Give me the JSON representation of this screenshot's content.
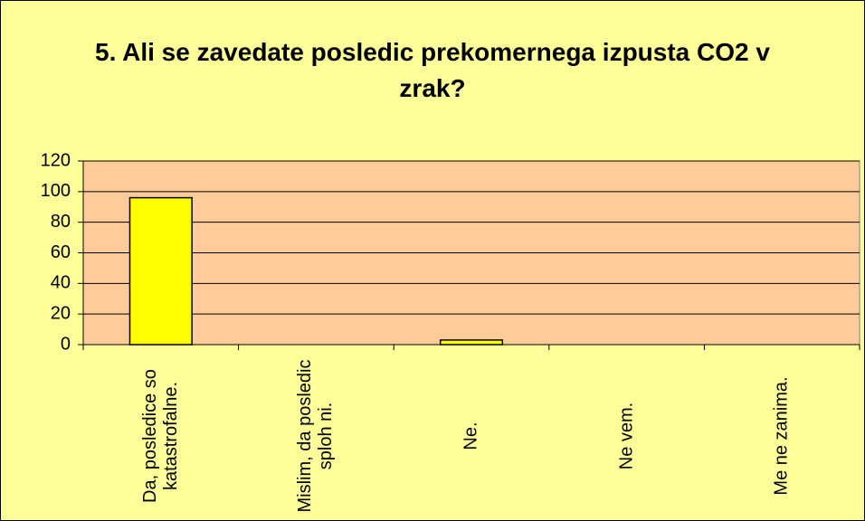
{
  "chart_data": {
    "type": "bar",
    "title": "5. Ali se zavedate posledic prekomernega izpusta CO2 v zrak?",
    "categories": [
      "Da, posledice so katastrofalne.",
      "Mislim, da posledic sploh ni.",
      "Ne.",
      "Ne vem.",
      "Me ne zanima."
    ],
    "values": [
      96,
      0,
      3,
      0,
      0
    ],
    "color": "#ffff00",
    "ylim": [
      0,
      120
    ],
    "yticks": [
      0,
      20,
      40,
      60,
      80,
      100,
      120
    ],
    "grid": true
  }
}
